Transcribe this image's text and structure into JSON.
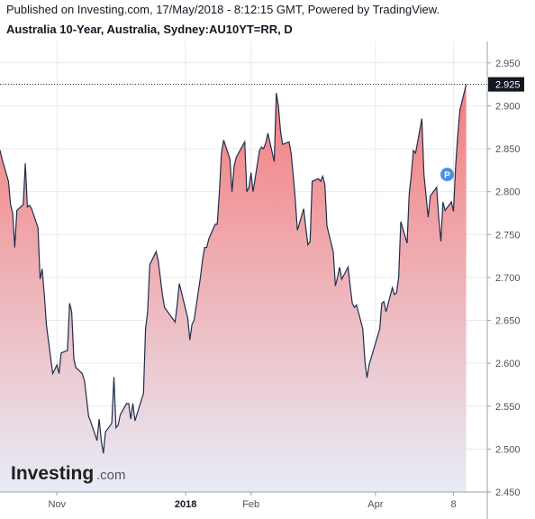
{
  "header": {
    "published": "Published on Investing.com, 17/May/2018 - 8:12:15 GMT, Powered by TradingView.",
    "symbol": "Australia 10-Year, Australia, Sydney:AU10YT=RR, D"
  },
  "logo": {
    "main": "Investing",
    "suffix": ".com"
  },
  "colors": {
    "line": "#1e2e4d",
    "fill_top": "#f47c7c",
    "fill_bottom": "#e8ecf7",
    "last_price_bg": "#131722",
    "marker": "#4a90e2",
    "grid": "#e7e9ee"
  },
  "chart_data": {
    "type": "area",
    "title": "Australia 10-Year, Australia, Sydney:AU10YT=RR, D",
    "ylim": [
      2.45,
      2.975
    ],
    "y_ticks": [
      "2.950",
      "2.900",
      "2.850",
      "2.800",
      "2.750",
      "2.700",
      "2.650",
      "2.600",
      "2.550",
      "2.500",
      "2.450"
    ],
    "x_ticks": [
      {
        "label": "Nov",
        "date": "2017-11-01",
        "bold": false
      },
      {
        "label": "2018",
        "date": "2018-01-01",
        "bold": true
      },
      {
        "label": "Feb",
        "date": "2018-02-01",
        "bold": false
      },
      {
        "label": "Apr",
        "date": "2018-04-01",
        "bold": false
      },
      {
        "label": "8",
        "date": "2018-05-08",
        "bold": false
      }
    ],
    "x_range": [
      "2017-10-05",
      "2018-05-24"
    ],
    "last_price": 2.925,
    "last_price_label": "2.925",
    "marker": {
      "label": "P",
      "date": "2018-05-05",
      "value": 2.82
    },
    "grid": true,
    "series": [
      {
        "values": [
          [
            "2017-10-04",
            2.848
          ],
          [
            "2017-10-05",
            2.848
          ],
          [
            "2017-10-06",
            2.838
          ],
          [
            "2017-10-09",
            2.812
          ],
          [
            "2017-10-10",
            2.785
          ],
          [
            "2017-10-11",
            2.775
          ],
          [
            "2017-10-12",
            2.735
          ],
          [
            "2017-10-13",
            2.778
          ],
          [
            "2017-10-16",
            2.785
          ],
          [
            "2017-10-17",
            2.833
          ],
          [
            "2017-10-18",
            2.782
          ],
          [
            "2017-10-19",
            2.784
          ],
          [
            "2017-10-20",
            2.78
          ],
          [
            "2017-10-23",
            2.758
          ],
          [
            "2017-10-24",
            2.698
          ],
          [
            "2017-10-25",
            2.71
          ],
          [
            "2017-10-26",
            2.68
          ],
          [
            "2017-10-27",
            2.645
          ],
          [
            "2017-10-30",
            2.588
          ],
          [
            "2017-10-31",
            2.593
          ],
          [
            "2017-11-01",
            2.598
          ],
          [
            "2017-11-02",
            2.588
          ],
          [
            "2017-11-03",
            2.612
          ],
          [
            "2017-11-06",
            2.615
          ],
          [
            "2017-11-07",
            2.67
          ],
          [
            "2017-11-08",
            2.66
          ],
          [
            "2017-11-09",
            2.605
          ],
          [
            "2017-11-10",
            2.595
          ],
          [
            "2017-11-13",
            2.588
          ],
          [
            "2017-11-14",
            2.58
          ],
          [
            "2017-11-15",
            2.56
          ],
          [
            "2017-11-16",
            2.538
          ],
          [
            "2017-11-17",
            2.532
          ],
          [
            "2017-11-20",
            2.51
          ],
          [
            "2017-11-21",
            2.535
          ],
          [
            "2017-11-22",
            2.51
          ],
          [
            "2017-11-23",
            2.495
          ],
          [
            "2017-11-24",
            2.52
          ],
          [
            "2017-11-27",
            2.53
          ],
          [
            "2017-11-28",
            2.584
          ],
          [
            "2017-11-29",
            2.525
          ],
          [
            "2017-11-30",
            2.528
          ],
          [
            "2017-12-01",
            2.54
          ],
          [
            "2017-12-04",
            2.553
          ],
          [
            "2017-12-05",
            2.553
          ],
          [
            "2017-12-06",
            2.535
          ],
          [
            "2017-12-07",
            2.553
          ],
          [
            "2017-12-08",
            2.533
          ],
          [
            "2017-12-11",
            2.557
          ],
          [
            "2017-12-12",
            2.565
          ],
          [
            "2017-12-13",
            2.64
          ],
          [
            "2017-12-14",
            2.66
          ],
          [
            "2017-12-15",
            2.715
          ],
          [
            "2017-12-18",
            2.73
          ],
          [
            "2017-12-19",
            2.72
          ],
          [
            "2017-12-20",
            2.7
          ],
          [
            "2017-12-21",
            2.68
          ],
          [
            "2017-12-22",
            2.665
          ],
          [
            "2017-12-27",
            2.648
          ],
          [
            "2017-12-28",
            2.668
          ],
          [
            "2017-12-29",
            2.693
          ],
          [
            "2018-01-02",
            2.653
          ],
          [
            "2018-01-03",
            2.627
          ],
          [
            "2018-01-04",
            2.645
          ],
          [
            "2018-01-05",
            2.65
          ],
          [
            "2018-01-08",
            2.7
          ],
          [
            "2018-01-09",
            2.72
          ],
          [
            "2018-01-10",
            2.735
          ],
          [
            "2018-01-11",
            2.735
          ],
          [
            "2018-01-12",
            2.745
          ],
          [
            "2018-01-15",
            2.762
          ],
          [
            "2018-01-16",
            2.762
          ],
          [
            "2018-01-17",
            2.8
          ],
          [
            "2018-01-18",
            2.845
          ],
          [
            "2018-01-19",
            2.86
          ],
          [
            "2018-01-22",
            2.838
          ],
          [
            "2018-01-23",
            2.8
          ],
          [
            "2018-01-24",
            2.83
          ],
          [
            "2018-01-25",
            2.84
          ],
          [
            "2018-01-29",
            2.858
          ],
          [
            "2018-01-30",
            2.8
          ],
          [
            "2018-01-31",
            2.805
          ],
          [
            "2018-02-01",
            2.822
          ],
          [
            "2018-02-02",
            2.8
          ],
          [
            "2018-02-05",
            2.848
          ],
          [
            "2018-02-06",
            2.852
          ],
          [
            "2018-02-07",
            2.85
          ],
          [
            "2018-02-08",
            2.857
          ],
          [
            "2018-02-09",
            2.868
          ],
          [
            "2018-02-12",
            2.835
          ],
          [
            "2018-02-13",
            2.915
          ],
          [
            "2018-02-14",
            2.9
          ],
          [
            "2018-02-15",
            2.87
          ],
          [
            "2018-02-16",
            2.855
          ],
          [
            "2018-02-19",
            2.858
          ],
          [
            "2018-02-20",
            2.845
          ],
          [
            "2018-02-21",
            2.82
          ],
          [
            "2018-02-22",
            2.79
          ],
          [
            "2018-02-23",
            2.755
          ],
          [
            "2018-02-26",
            2.78
          ],
          [
            "2018-02-27",
            2.757
          ],
          [
            "2018-02-28",
            2.738
          ],
          [
            "2018-03-01",
            2.742
          ],
          [
            "2018-03-02",
            2.812
          ],
          [
            "2018-03-05",
            2.815
          ],
          [
            "2018-03-06",
            2.812
          ],
          [
            "2018-03-07",
            2.818
          ],
          [
            "2018-03-08",
            2.808
          ],
          [
            "2018-03-09",
            2.76
          ],
          [
            "2018-03-12",
            2.73
          ],
          [
            "2018-03-13",
            2.69
          ],
          [
            "2018-03-14",
            2.7
          ],
          [
            "2018-03-15",
            2.712
          ],
          [
            "2018-03-16",
            2.698
          ],
          [
            "2018-03-19",
            2.712
          ],
          [
            "2018-03-20",
            2.69
          ],
          [
            "2018-03-21",
            2.67
          ],
          [
            "2018-03-22",
            2.665
          ],
          [
            "2018-03-23",
            2.668
          ],
          [
            "2018-03-26",
            2.64
          ],
          [
            "2018-03-27",
            2.602
          ],
          [
            "2018-03-28",
            2.583
          ],
          [
            "2018-03-29",
            2.598
          ],
          [
            "2018-04-03",
            2.64
          ],
          [
            "2018-04-04",
            2.67
          ],
          [
            "2018-04-05",
            2.672
          ],
          [
            "2018-04-06",
            2.66
          ],
          [
            "2018-04-09",
            2.688
          ],
          [
            "2018-04-10",
            2.68
          ],
          [
            "2018-04-11",
            2.682
          ],
          [
            "2018-04-12",
            2.7
          ],
          [
            "2018-04-13",
            2.765
          ],
          [
            "2018-04-16",
            2.74
          ],
          [
            "2018-04-17",
            2.797
          ],
          [
            "2018-04-18",
            2.82
          ],
          [
            "2018-04-19",
            2.848
          ],
          [
            "2018-04-20",
            2.845
          ],
          [
            "2018-04-23",
            2.885
          ],
          [
            "2018-04-24",
            2.82
          ],
          [
            "2018-04-26",
            2.77
          ],
          [
            "2018-04-27",
            2.795
          ],
          [
            "2018-04-30",
            2.805
          ],
          [
            "2018-05-01",
            2.77
          ],
          [
            "2018-05-02",
            2.742
          ],
          [
            "2018-05-03",
            2.788
          ],
          [
            "2018-05-04",
            2.778
          ],
          [
            "2018-05-07",
            2.788
          ],
          [
            "2018-05-08",
            2.777
          ],
          [
            "2018-05-09",
            2.83
          ],
          [
            "2018-05-10",
            2.865
          ],
          [
            "2018-05-11",
            2.895
          ],
          [
            "2018-05-14",
            2.925
          ]
        ]
      }
    ]
  }
}
